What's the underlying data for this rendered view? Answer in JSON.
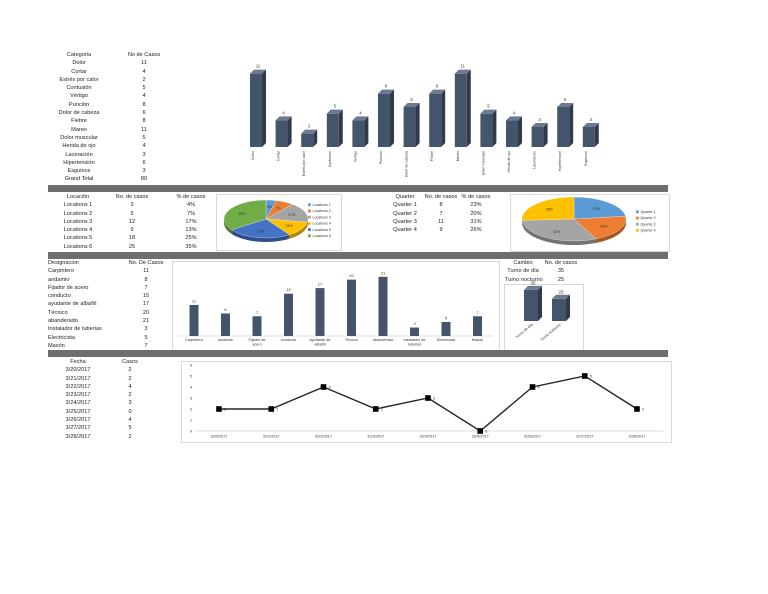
{
  "colors": {
    "bar_front": "#44546a",
    "bar_side": "#2f3b4c",
    "bar_top": "#6b7a90",
    "band": "#6e6e6e",
    "pie": [
      "#5b9bd5",
      "#ed7d31",
      "#a5a5a5",
      "#ffc000",
      "#4472c4",
      "#70ad47"
    ],
    "line": "#262626",
    "marker": "#000000"
  },
  "categoria_table": {
    "headers": [
      "Categoria",
      "No de Casos"
    ],
    "rows": [
      [
        "Dolor",
        "11"
      ],
      [
        "Cortar",
        "4"
      ],
      [
        "Estrés por calor",
        "2"
      ],
      [
        "Contusión",
        "5"
      ],
      [
        "Vértigo",
        "4"
      ],
      [
        "Punción",
        "8"
      ],
      [
        "Dolor de cabeza",
        "6"
      ],
      [
        "Fiebre",
        "8"
      ],
      [
        "Mareo",
        "11"
      ],
      [
        "Dolor muscular",
        "5"
      ],
      [
        "Herida de ojo",
        "4"
      ],
      [
        "Laceración",
        "3"
      ],
      [
        "Hipertensión",
        "6"
      ],
      [
        "Esguince",
        "3"
      ],
      [
        "Grand Total",
        "80"
      ]
    ]
  },
  "location_table": {
    "headers": [
      "Locación",
      "No. de casos",
      "% de casos"
    ],
    "rows": [
      [
        "Locations 1",
        "3",
        "4%"
      ],
      [
        "Locations 2",
        "5",
        "7%"
      ],
      [
        "Locations 3",
        "12",
        "17%"
      ],
      [
        "Locations 4",
        "9",
        "13%"
      ],
      [
        "Locations 5",
        "18",
        "25%"
      ],
      [
        "Locations 6",
        "25",
        "35%"
      ]
    ]
  },
  "quarter_table": {
    "headers": [
      "Quarter",
      "No. de casos",
      "% de casos"
    ],
    "rows": [
      [
        "Quarter 1",
        "8",
        "23%"
      ],
      [
        "Quarter 2",
        "7",
        "20%"
      ],
      [
        "Quarter 3",
        "11",
        "31%"
      ],
      [
        "Quarter 4",
        "9",
        "26%"
      ]
    ]
  },
  "designacion_table": {
    "headers": [
      "Designacion",
      "No. De Casos"
    ],
    "rows": [
      [
        "Carpintero",
        "11"
      ],
      [
        "andamio",
        "8"
      ],
      [
        "Fijador de acero",
        "7"
      ],
      [
        "conducto",
        "15"
      ],
      [
        "ayudante de albañil",
        "17"
      ],
      [
        "Técnico",
        "20"
      ],
      [
        "abanderado",
        "21"
      ],
      [
        "Instalador de tuberias",
        "3"
      ],
      [
        "Electricista",
        "5"
      ],
      [
        "Masón",
        "7"
      ]
    ]
  },
  "cambio_table": {
    "headers": [
      "Cambio",
      "No. de casos"
    ],
    "rows": [
      [
        "Turno de día",
        "35"
      ],
      [
        "Turno nocturno",
        "25"
      ]
    ]
  },
  "fecha_table": {
    "headers": [
      "Fecha",
      "Casos"
    ],
    "rows": [
      [
        "3/20/2017",
        "2"
      ],
      [
        "3/21/2017",
        "2"
      ],
      [
        "3/22/2017",
        "4"
      ],
      [
        "3/23/2017",
        "2"
      ],
      [
        "3/24/2017",
        "3"
      ],
      [
        "3/25/2017",
        "0"
      ],
      [
        "3/26/2017",
        "4"
      ],
      [
        "3/27/2017",
        "5"
      ],
      [
        "3/28/2017",
        "2"
      ]
    ]
  },
  "chart_data": [
    {
      "id": "categoria",
      "type": "bar",
      "categories": [
        "Dolor",
        "Cortar",
        "Estrés por calor",
        "Contusión",
        "Vértigo",
        "Punción",
        "Dolor de cabeza",
        "Fiebre",
        "Mareo",
        "Dolor muscular",
        "Herida de ojo",
        "Laceración",
        "Hipertensión",
        "Esguince"
      ],
      "values": [
        11,
        4,
        2,
        5,
        4,
        8,
        6,
        8,
        11,
        5,
        4,
        3,
        6,
        3
      ],
      "ylim": [
        0,
        12
      ],
      "style": "3d-column",
      "grid": false,
      "legend": "none"
    },
    {
      "id": "location",
      "type": "pie",
      "labels": [
        "Locations 1",
        "Locations 2",
        "Locations 3",
        "Locations 4",
        "Locations 5",
        "Locations 6"
      ],
      "values": [
        4,
        7,
        17,
        13,
        25,
        35
      ],
      "data_labels": [
        "4%",
        "7%",
        "17%",
        "13%",
        "25%",
        "35%"
      ],
      "legend": "right"
    },
    {
      "id": "quarter",
      "type": "pie",
      "labels": [
        "Quarter 1",
        "Quarter 2",
        "Quarter 3",
        "Quarter 4"
      ],
      "values": [
        23,
        20,
        31,
        26
      ],
      "data_labels": [
        "23%",
        "20%",
        "31%",
        "26%"
      ],
      "legend": "right"
    },
    {
      "id": "designacion",
      "type": "bar",
      "categories": [
        "Carpintero",
        "andamio",
        "Fijador de acero",
        "conducto",
        "ayudante de albañil",
        "Técnico",
        "abanderado",
        "Instalador de tuberias",
        "Electricista",
        "Masón"
      ],
      "values": [
        11,
        8,
        7,
        15,
        17,
        20,
        21,
        3,
        5,
        7
      ],
      "ylim": [
        0,
        22
      ],
      "grid": false,
      "legend": "none"
    },
    {
      "id": "cambio",
      "type": "bar",
      "categories": [
        "Turno de día",
        "Turno nocturno"
      ],
      "values": [
        35,
        25
      ],
      "ylim": [
        0,
        36
      ],
      "style": "3d-column",
      "legend": "none"
    },
    {
      "id": "fecha",
      "type": "line",
      "x": [
        "3/20/2017",
        "3/21/2017",
        "3/22/2017",
        "3/23/2017",
        "3/24/2017",
        "3/25/2017",
        "3/26/2017",
        "3/27/2017",
        "3/28/2017"
      ],
      "y": [
        2,
        2,
        4,
        2,
        3,
        0,
        4,
        5,
        2
      ],
      "ylim": [
        0,
        6
      ],
      "yticks": [
        "0",
        "1",
        "2",
        "3",
        "4",
        "5",
        "6"
      ],
      "grid": false,
      "legend": "none"
    }
  ]
}
